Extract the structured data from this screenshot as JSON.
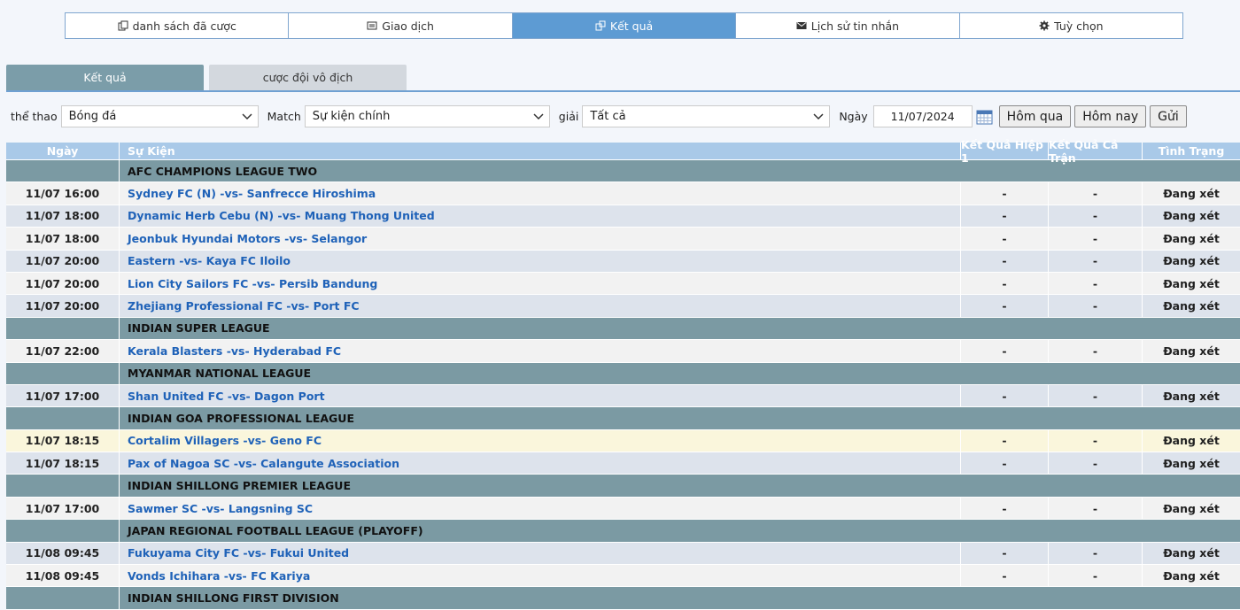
{
  "nav": [
    "danh sách đã cược",
    "Giao dịch",
    "Kết quả",
    "Lịch sử tin nhắn",
    "Tuỳ chọn"
  ],
  "tabs": [
    "Kết quả",
    "cược đội vô địch"
  ],
  "filters": {
    "sport_label": "thể thao",
    "sport": "Bóng đá",
    "match_label": "Match",
    "match": "Sự kiện chính",
    "league_label": "giải",
    "league": "Tất cả",
    "date_label": "Ngày",
    "date": "11/07/2024"
  },
  "buttons": [
    "Hôm qua",
    "Hôm nay",
    "Gửi"
  ],
  "table": {
    "headers": [
      "Ngày",
      "Sự Kiện",
      "Kết Quả Hiệp 1",
      "Kết Quả Cả Trận",
      "Tình Trạng"
    ],
    "groups": [
      {
        "league": "AFC CHAMPIONS LEAGUE TWO",
        "rows": [
          [
            "11/07 16:00",
            "Sydney FC (N) -vs- Sanfrecce Hiroshima",
            "-",
            "-",
            "Đang xét"
          ],
          [
            "11/07 18:00",
            "Dynamic Herb Cebu (N) -vs- Muang Thong United",
            "-",
            "-",
            "Đang xét"
          ],
          [
            "11/07 18:00",
            "Jeonbuk Hyundai Motors -vs- Selangor",
            "-",
            "-",
            "Đang xét"
          ],
          [
            "11/07 20:00",
            "Eastern -vs- Kaya FC Iloilo",
            "-",
            "-",
            "Đang xét"
          ],
          [
            "11/07 20:00",
            "Lion City Sailors FC -vs- Persib Bandung",
            "-",
            "-",
            "Đang xét"
          ],
          [
            "11/07 20:00",
            "Zhejiang Professional FC -vs- Port FC",
            "-",
            "-",
            "Đang xét"
          ]
        ]
      },
      {
        "league": "INDIAN SUPER LEAGUE",
        "rows": [
          [
            "11/07 22:00",
            "Kerala Blasters -vs- Hyderabad FC",
            "-",
            "-",
            "Đang xét"
          ]
        ]
      },
      {
        "league": "MYANMAR NATIONAL LEAGUE",
        "rows": [
          [
            "11/07 17:00",
            "Shan United FC -vs- Dagon Port",
            "-",
            "-",
            "Đang xét"
          ]
        ]
      },
      {
        "league": "INDIAN GOA PROFESSIONAL LEAGUE",
        "rows": [
          [
            "11/07 18:15",
            "Cortalim Villagers -vs- Geno FC",
            "-",
            "-",
            "Đang xét"
          ],
          [
            "11/07 18:15",
            "Pax of Nagoa SC -vs- Calangute Association",
            "-",
            "-",
            "Đang xét"
          ]
        ]
      },
      {
        "league": "INDIAN SHILLONG PREMIER LEAGUE",
        "rows": [
          [
            "11/07 17:00",
            "Sawmer SC -vs- Langsning SC",
            "-",
            "-",
            "Đang xét"
          ]
        ]
      },
      {
        "league": "JAPAN REGIONAL FOOTBALL LEAGUE (PLAYOFF)",
        "rows": [
          [
            "11/08 09:45",
            "Fukuyama City FC -vs- Fukui United",
            "-",
            "-",
            "Đang xét"
          ],
          [
            "11/08 09:45",
            "Vonds Ichihara -vs- FC Kariya",
            "-",
            "-",
            "Đang xét"
          ]
        ]
      },
      {
        "league": "INDIAN SHILLONG FIRST DIVISION",
        "rows": []
      }
    ]
  }
}
